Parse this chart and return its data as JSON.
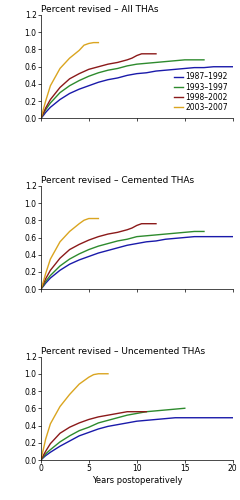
{
  "title1": "Percent revised – All THAs",
  "title2": "Percent revised – Cemented THAs",
  "title3": "Percent revised – Uncemented THAs",
  "xlabel": "Years postoperatively",
  "ylim": [
    0,
    1.2
  ],
  "xlim": [
    0,
    20
  ],
  "yticks": [
    0,
    0.2,
    0.4,
    0.6,
    0.8,
    1.0,
    1.2
  ],
  "xticks": [
    0,
    5,
    10,
    15,
    20
  ],
  "colors": {
    "blue": "#1a1aaa",
    "green": "#2e8b2e",
    "red": "#8b1a1a",
    "orange": "#daa520"
  },
  "legend_labels": [
    "1987–1992",
    "1993–1997",
    "1998–2002",
    "2003–2007"
  ],
  "panel1": {
    "blue": [
      [
        0,
        0
      ],
      [
        0.3,
        0.04
      ],
      [
        0.5,
        0.07
      ],
      [
        1,
        0.13
      ],
      [
        2,
        0.22
      ],
      [
        3,
        0.29
      ],
      [
        4,
        0.34
      ],
      [
        5,
        0.38
      ],
      [
        6,
        0.42
      ],
      [
        7,
        0.45
      ],
      [
        8,
        0.47
      ],
      [
        9,
        0.5
      ],
      [
        10,
        0.52
      ],
      [
        11,
        0.53
      ],
      [
        12,
        0.55
      ],
      [
        13,
        0.56
      ],
      [
        14,
        0.57
      ],
      [
        15,
        0.58
      ],
      [
        16,
        0.59
      ],
      [
        17,
        0.59
      ],
      [
        18,
        0.6
      ],
      [
        19,
        0.6
      ],
      [
        20,
        0.6
      ]
    ],
    "green": [
      [
        0,
        0
      ],
      [
        0.3,
        0.06
      ],
      [
        0.5,
        0.1
      ],
      [
        1,
        0.18
      ],
      [
        2,
        0.3
      ],
      [
        3,
        0.38
      ],
      [
        4,
        0.44
      ],
      [
        5,
        0.49
      ],
      [
        6,
        0.53
      ],
      [
        7,
        0.56
      ],
      [
        8,
        0.58
      ],
      [
        9,
        0.61
      ],
      [
        10,
        0.63
      ],
      [
        11,
        0.64
      ],
      [
        12,
        0.65
      ],
      [
        13,
        0.66
      ],
      [
        14,
        0.67
      ],
      [
        15,
        0.68
      ],
      [
        16,
        0.68
      ],
      [
        17,
        0.68
      ]
    ],
    "red": [
      [
        0,
        0
      ],
      [
        0.3,
        0.07
      ],
      [
        0.5,
        0.12
      ],
      [
        1,
        0.22
      ],
      [
        2,
        0.36
      ],
      [
        3,
        0.46
      ],
      [
        4,
        0.52
      ],
      [
        5,
        0.57
      ],
      [
        6,
        0.6
      ],
      [
        7,
        0.63
      ],
      [
        8,
        0.65
      ],
      [
        9,
        0.68
      ],
      [
        9.5,
        0.7
      ],
      [
        10,
        0.73
      ],
      [
        10.5,
        0.75
      ],
      [
        11,
        0.75
      ],
      [
        12,
        0.75
      ]
    ],
    "orange": [
      [
        0,
        0
      ],
      [
        0.3,
        0.12
      ],
      [
        0.5,
        0.2
      ],
      [
        1,
        0.38
      ],
      [
        2,
        0.58
      ],
      [
        3,
        0.7
      ],
      [
        4,
        0.79
      ],
      [
        4.5,
        0.85
      ],
      [
        5,
        0.87
      ],
      [
        5.5,
        0.88
      ],
      [
        6,
        0.88
      ]
    ]
  },
  "panel2": {
    "blue": [
      [
        0,
        0
      ],
      [
        0.3,
        0.04
      ],
      [
        0.5,
        0.07
      ],
      [
        1,
        0.13
      ],
      [
        2,
        0.22
      ],
      [
        3,
        0.29
      ],
      [
        4,
        0.34
      ],
      [
        5,
        0.38
      ],
      [
        6,
        0.42
      ],
      [
        7,
        0.45
      ],
      [
        8,
        0.48
      ],
      [
        9,
        0.51
      ],
      [
        10,
        0.53
      ],
      [
        11,
        0.55
      ],
      [
        12,
        0.56
      ],
      [
        13,
        0.58
      ],
      [
        14,
        0.59
      ],
      [
        15,
        0.6
      ],
      [
        16,
        0.61
      ],
      [
        17,
        0.61
      ],
      [
        18,
        0.61
      ],
      [
        19,
        0.61
      ],
      [
        20,
        0.61
      ]
    ],
    "green": [
      [
        0,
        0
      ],
      [
        0.3,
        0.05
      ],
      [
        0.5,
        0.09
      ],
      [
        1,
        0.16
      ],
      [
        2,
        0.27
      ],
      [
        3,
        0.35
      ],
      [
        4,
        0.41
      ],
      [
        5,
        0.46
      ],
      [
        6,
        0.5
      ],
      [
        7,
        0.53
      ],
      [
        8,
        0.56
      ],
      [
        9,
        0.58
      ],
      [
        10,
        0.61
      ],
      [
        11,
        0.62
      ],
      [
        12,
        0.63
      ],
      [
        13,
        0.64
      ],
      [
        14,
        0.65
      ],
      [
        15,
        0.66
      ],
      [
        16,
        0.67
      ],
      [
        17,
        0.67
      ]
    ],
    "red": [
      [
        0,
        0
      ],
      [
        0.3,
        0.07
      ],
      [
        0.5,
        0.12
      ],
      [
        1,
        0.22
      ],
      [
        2,
        0.36
      ],
      [
        3,
        0.46
      ],
      [
        4,
        0.52
      ],
      [
        5,
        0.57
      ],
      [
        6,
        0.61
      ],
      [
        7,
        0.64
      ],
      [
        8,
        0.66
      ],
      [
        9,
        0.69
      ],
      [
        9.5,
        0.71
      ],
      [
        10,
        0.74
      ],
      [
        10.5,
        0.76
      ],
      [
        11,
        0.76
      ],
      [
        12,
        0.76
      ]
    ],
    "orange": [
      [
        0,
        0
      ],
      [
        0.3,
        0.1
      ],
      [
        0.5,
        0.18
      ],
      [
        1,
        0.35
      ],
      [
        2,
        0.55
      ],
      [
        3,
        0.67
      ],
      [
        4,
        0.76
      ],
      [
        4.5,
        0.8
      ],
      [
        5,
        0.82
      ],
      [
        5.5,
        0.82
      ],
      [
        6,
        0.82
      ]
    ]
  },
  "panel3": {
    "blue": [
      [
        0,
        0
      ],
      [
        0.3,
        0.03
      ],
      [
        0.5,
        0.05
      ],
      [
        1,
        0.09
      ],
      [
        2,
        0.16
      ],
      [
        3,
        0.22
      ],
      [
        4,
        0.28
      ],
      [
        5,
        0.32
      ],
      [
        6,
        0.36
      ],
      [
        7,
        0.39
      ],
      [
        8,
        0.41
      ],
      [
        9,
        0.43
      ],
      [
        10,
        0.45
      ],
      [
        11,
        0.46
      ],
      [
        12,
        0.47
      ],
      [
        13,
        0.48
      ],
      [
        14,
        0.49
      ],
      [
        15,
        0.49
      ],
      [
        16,
        0.49
      ],
      [
        17,
        0.49
      ],
      [
        18,
        0.49
      ],
      [
        19,
        0.49
      ],
      [
        20,
        0.49
      ]
    ],
    "green": [
      [
        0,
        0
      ],
      [
        0.3,
        0.04
      ],
      [
        0.5,
        0.07
      ],
      [
        1,
        0.12
      ],
      [
        2,
        0.21
      ],
      [
        3,
        0.28
      ],
      [
        4,
        0.34
      ],
      [
        5,
        0.38
      ],
      [
        6,
        0.43
      ],
      [
        7,
        0.46
      ],
      [
        8,
        0.49
      ],
      [
        9,
        0.52
      ],
      [
        10,
        0.54
      ],
      [
        11,
        0.56
      ],
      [
        12,
        0.57
      ],
      [
        13,
        0.58
      ],
      [
        14,
        0.59
      ],
      [
        15,
        0.6
      ]
    ],
    "red": [
      [
        0,
        0
      ],
      [
        0.3,
        0.06
      ],
      [
        0.5,
        0.1
      ],
      [
        1,
        0.19
      ],
      [
        2,
        0.31
      ],
      [
        3,
        0.38
      ],
      [
        4,
        0.43
      ],
      [
        5,
        0.47
      ],
      [
        6,
        0.5
      ],
      [
        7,
        0.52
      ],
      [
        8,
        0.54
      ],
      [
        9,
        0.56
      ],
      [
        10,
        0.56
      ],
      [
        10.5,
        0.56
      ],
      [
        11,
        0.56
      ]
    ],
    "orange": [
      [
        0,
        0
      ],
      [
        0.3,
        0.14
      ],
      [
        0.5,
        0.24
      ],
      [
        1,
        0.42
      ],
      [
        2,
        0.62
      ],
      [
        3,
        0.76
      ],
      [
        4,
        0.88
      ],
      [
        5,
        0.96
      ],
      [
        5.5,
        0.99
      ],
      [
        6,
        1.0
      ],
      [
        6.5,
        1.0
      ],
      [
        7,
        1.0
      ]
    ]
  },
  "bg_color": "#ffffff",
  "line_width": 1.0,
  "title_fontsize": 6.5,
  "tick_fontsize": 5.5,
  "legend_fontsize": 5.5
}
